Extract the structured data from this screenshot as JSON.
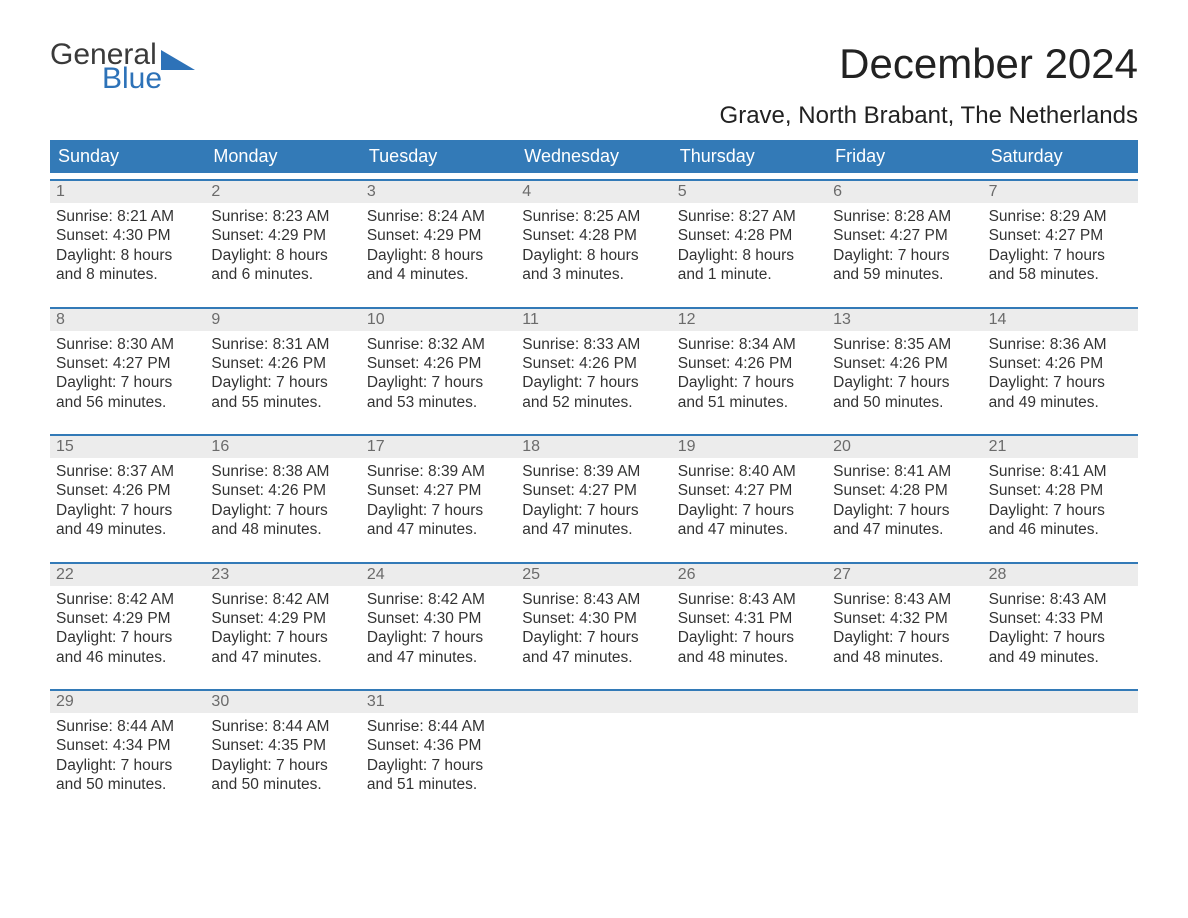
{
  "logo": {
    "word1": "General",
    "word2": "Blue",
    "triangle_color": "#2d72b8"
  },
  "title": "December 2024",
  "subtitle": "Grave, North Brabant, The Netherlands",
  "colors": {
    "header_bg": "#337ab7",
    "header_text": "#ffffff",
    "date_bg": "#ececec",
    "date_text": "#6b6b6b",
    "body_text": "#333333",
    "week_border": "#337ab7"
  },
  "day_names": [
    "Sunday",
    "Monday",
    "Tuesday",
    "Wednesday",
    "Thursday",
    "Friday",
    "Saturday"
  ],
  "weeks": [
    [
      {
        "date": "1",
        "sunrise": "8:21 AM",
        "sunset": "4:30 PM",
        "daylight": "8 hours and 8 minutes."
      },
      {
        "date": "2",
        "sunrise": "8:23 AM",
        "sunset": "4:29 PM",
        "daylight": "8 hours and 6 minutes."
      },
      {
        "date": "3",
        "sunrise": "8:24 AM",
        "sunset": "4:29 PM",
        "daylight": "8 hours and 4 minutes."
      },
      {
        "date": "4",
        "sunrise": "8:25 AM",
        "sunset": "4:28 PM",
        "daylight": "8 hours and 3 minutes."
      },
      {
        "date": "5",
        "sunrise": "8:27 AM",
        "sunset": "4:28 PM",
        "daylight": "8 hours and 1 minute."
      },
      {
        "date": "6",
        "sunrise": "8:28 AM",
        "sunset": "4:27 PM",
        "daylight": "7 hours and 59 minutes."
      },
      {
        "date": "7",
        "sunrise": "8:29 AM",
        "sunset": "4:27 PM",
        "daylight": "7 hours and 58 minutes."
      }
    ],
    [
      {
        "date": "8",
        "sunrise": "8:30 AM",
        "sunset": "4:27 PM",
        "daylight": "7 hours and 56 minutes."
      },
      {
        "date": "9",
        "sunrise": "8:31 AM",
        "sunset": "4:26 PM",
        "daylight": "7 hours and 55 minutes."
      },
      {
        "date": "10",
        "sunrise": "8:32 AM",
        "sunset": "4:26 PM",
        "daylight": "7 hours and 53 minutes."
      },
      {
        "date": "11",
        "sunrise": "8:33 AM",
        "sunset": "4:26 PM",
        "daylight": "7 hours and 52 minutes."
      },
      {
        "date": "12",
        "sunrise": "8:34 AM",
        "sunset": "4:26 PM",
        "daylight": "7 hours and 51 minutes."
      },
      {
        "date": "13",
        "sunrise": "8:35 AM",
        "sunset": "4:26 PM",
        "daylight": "7 hours and 50 minutes."
      },
      {
        "date": "14",
        "sunrise": "8:36 AM",
        "sunset": "4:26 PM",
        "daylight": "7 hours and 49 minutes."
      }
    ],
    [
      {
        "date": "15",
        "sunrise": "8:37 AM",
        "sunset": "4:26 PM",
        "daylight": "7 hours and 49 minutes."
      },
      {
        "date": "16",
        "sunrise": "8:38 AM",
        "sunset": "4:26 PM",
        "daylight": "7 hours and 48 minutes."
      },
      {
        "date": "17",
        "sunrise": "8:39 AM",
        "sunset": "4:27 PM",
        "daylight": "7 hours and 47 minutes."
      },
      {
        "date": "18",
        "sunrise": "8:39 AM",
        "sunset": "4:27 PM",
        "daylight": "7 hours and 47 minutes."
      },
      {
        "date": "19",
        "sunrise": "8:40 AM",
        "sunset": "4:27 PM",
        "daylight": "7 hours and 47 minutes."
      },
      {
        "date": "20",
        "sunrise": "8:41 AM",
        "sunset": "4:28 PM",
        "daylight": "7 hours and 47 minutes."
      },
      {
        "date": "21",
        "sunrise": "8:41 AM",
        "sunset": "4:28 PM",
        "daylight": "7 hours and 46 minutes."
      }
    ],
    [
      {
        "date": "22",
        "sunrise": "8:42 AM",
        "sunset": "4:29 PM",
        "daylight": "7 hours and 46 minutes."
      },
      {
        "date": "23",
        "sunrise": "8:42 AM",
        "sunset": "4:29 PM",
        "daylight": "7 hours and 47 minutes."
      },
      {
        "date": "24",
        "sunrise": "8:42 AM",
        "sunset": "4:30 PM",
        "daylight": "7 hours and 47 minutes."
      },
      {
        "date": "25",
        "sunrise": "8:43 AM",
        "sunset": "4:30 PM",
        "daylight": "7 hours and 47 minutes."
      },
      {
        "date": "26",
        "sunrise": "8:43 AM",
        "sunset": "4:31 PM",
        "daylight": "7 hours and 48 minutes."
      },
      {
        "date": "27",
        "sunrise": "8:43 AM",
        "sunset": "4:32 PM",
        "daylight": "7 hours and 48 minutes."
      },
      {
        "date": "28",
        "sunrise": "8:43 AM",
        "sunset": "4:33 PM",
        "daylight": "7 hours and 49 minutes."
      }
    ],
    [
      {
        "date": "29",
        "sunrise": "8:44 AM",
        "sunset": "4:34 PM",
        "daylight": "7 hours and 50 minutes."
      },
      {
        "date": "30",
        "sunrise": "8:44 AM",
        "sunset": "4:35 PM",
        "daylight": "7 hours and 50 minutes."
      },
      {
        "date": "31",
        "sunrise": "8:44 AM",
        "sunset": "4:36 PM",
        "daylight": "7 hours and 51 minutes."
      },
      null,
      null,
      null,
      null
    ]
  ],
  "labels": {
    "sunrise_prefix": "Sunrise: ",
    "sunset_prefix": "Sunset: ",
    "daylight_prefix": "Daylight: "
  }
}
